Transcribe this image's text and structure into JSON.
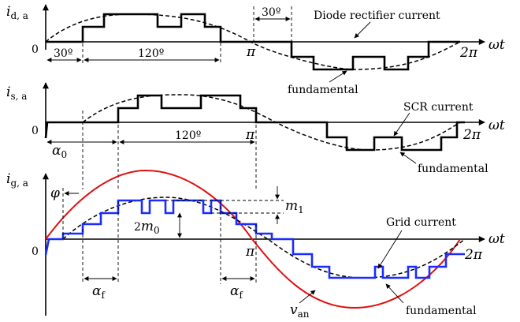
{
  "colors": {
    "text": "#000000",
    "grid_current": "#1a2cff",
    "voltage": "#e01010",
    "background": "#ffffff"
  },
  "panel_top": {
    "y_label_main": "i",
    "y_label_sub": "d, a",
    "origin": "0",
    "x_axis_label": "ωt",
    "pi_label": "π",
    "two_pi_label": "2π",
    "angle_30_left": "30º",
    "angle_120": "120º",
    "angle_30_right": "30º",
    "curve_label": "Diode rectifier current",
    "fundamental_label": "fundamental"
  },
  "panel_middle": {
    "y_label_main": "i",
    "y_label_sub": "s, a",
    "origin": "0",
    "x_axis_label": "ωt",
    "pi_label": "π",
    "two_pi_label": "2π",
    "alpha_label": "α",
    "alpha_sub": "0",
    "angle_120": "120º",
    "curve_label": "SCR current",
    "fundamental_label": "fundamental"
  },
  "panel_bottom": {
    "y_label_main": "i",
    "y_label_sub": "g, a",
    "origin": "0",
    "x_axis_label": "ωt",
    "pi_label": "π",
    "two_pi_label": "2π",
    "phi_label": "φ",
    "m1_main": "m",
    "m1_sub": "1",
    "m0_coef": "2",
    "m0_main": "m",
    "m0_sub": "0",
    "alpha_f_left_main": "α",
    "alpha_f_left_sub": "f",
    "alpha_f_right_main": "α",
    "alpha_f_right_sub": "f",
    "curve_label": "Grid current",
    "voltage_main": "v",
    "voltage_sub": "an",
    "fundamental_label": "fundamental"
  }
}
